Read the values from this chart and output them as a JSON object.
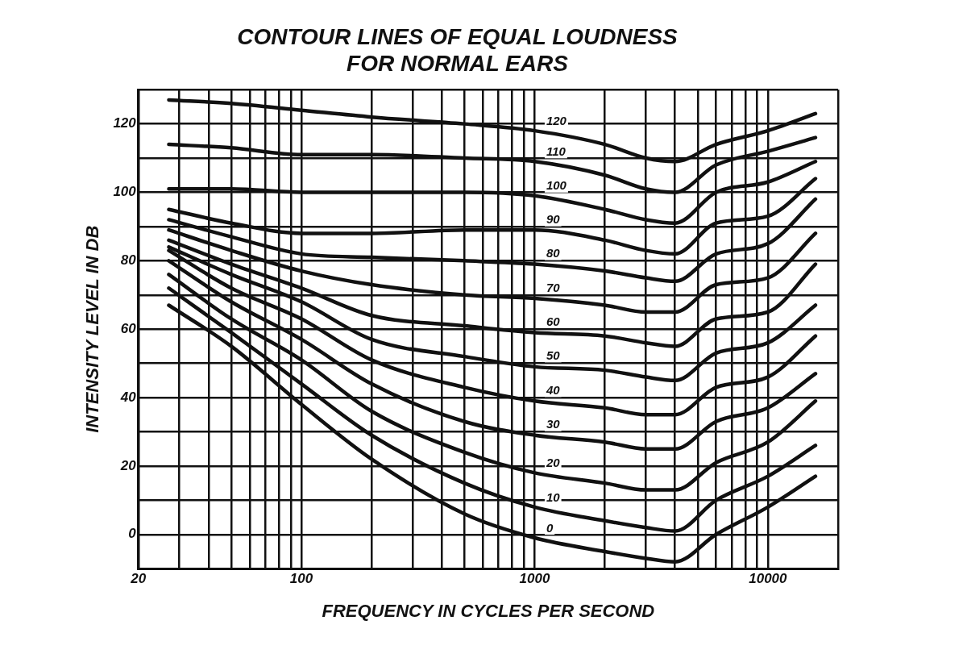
{
  "chart_data": {
    "type": "line",
    "title": "CONTOUR LINES OF EQUAL LOUDNESS\nFOR NORMAL EARS",
    "xlabel": "FREQUENCY IN CYCLES PER SECOND",
    "ylabel": "INTENSITY LEVEL IN DB",
    "log": "x",
    "grid": true,
    "legend": false,
    "marker": "none",
    "line_style": "solid",
    "xlim": [
      20,
      20000
    ],
    "ylim": [
      -10,
      130
    ],
    "xticks": [
      20,
      {
        "value": 30,
        "label": null
      },
      {
        "value": 40,
        "label": null
      },
      {
        "value": 50,
        "label": null
      },
      {
        "value": 60,
        "label": null
      },
      {
        "value": 70,
        "label": null
      },
      {
        "value": 80,
        "label": null
      },
      {
        "value": 90,
        "label": null
      },
      100,
      {
        "value": 200,
        "label": null
      },
      {
        "value": 300,
        "label": null
      },
      {
        "value": 400,
        "label": null
      },
      {
        "value": 500,
        "label": null
      },
      {
        "value": 600,
        "label": null
      },
      {
        "value": 700,
        "label": null
      },
      {
        "value": 800,
        "label": null
      },
      {
        "value": 900,
        "label": null
      },
      1000,
      {
        "value": 2000,
        "label": null
      },
      {
        "value": 3000,
        "label": null
      },
      {
        "value": 4000,
        "label": null
      },
      {
        "value": 5000,
        "label": null
      },
      {
        "value": 6000,
        "label": null
      },
      {
        "value": 7000,
        "label": null
      },
      {
        "value": 8000,
        "label": null
      },
      {
        "value": 9000,
        "label": null
      },
      10000,
      {
        "value": 20000,
        "label": null
      }
    ],
    "yticks": [
      {
        "value": -10,
        "label": null
      },
      0,
      {
        "value": 10,
        "label": null
      },
      20,
      {
        "value": 30,
        "label": null
      },
      40,
      {
        "value": 50,
        "label": null
      },
      60,
      {
        "value": 70,
        "label": null
      },
      80,
      {
        "value": 90,
        "label": null
      },
      100,
      {
        "value": 110,
        "label": null
      },
      120,
      {
        "value": 130,
        "label": null
      }
    ],
    "x": [
      27,
      50,
      100,
      200,
      500,
      1000,
      2000,
      3000,
      4000,
      6000,
      10000,
      16000
    ],
    "series": [
      {
        "name": "120",
        "color": "#111111",
        "values": [
          127,
          126,
          124,
          122,
          120,
          118,
          114,
          110,
          109,
          114,
          118,
          123
        ]
      },
      {
        "name": "110",
        "color": "#111111",
        "values": [
          114,
          113,
          111,
          111,
          110,
          109,
          105,
          101,
          100,
          108,
          112,
          116
        ]
      },
      {
        "name": "100",
        "color": "#111111",
        "values": [
          101,
          101,
          100,
          100,
          100,
          99,
          95,
          92,
          91,
          100,
          103,
          109
        ]
      },
      {
        "name": "90",
        "color": "#111111",
        "values": [
          95,
          91,
          88,
          88,
          89,
          89,
          86,
          83,
          82,
          91,
          93,
          104
        ]
      },
      {
        "name": "80",
        "color": "#111111",
        "values": [
          92,
          87,
          82,
          81,
          80,
          79,
          77,
          75,
          74,
          82,
          85,
          98
        ]
      },
      {
        "name": "70",
        "color": "#111111",
        "values": [
          89,
          83,
          77,
          73,
          70,
          69,
          67,
          65,
          65,
          73,
          75,
          88
        ]
      },
      {
        "name": "60",
        "color": "#111111",
        "values": [
          86,
          79,
          72,
          64,
          61,
          59,
          58,
          56,
          55,
          63,
          65,
          79
        ]
      },
      {
        "name": "50",
        "color": "#111111",
        "values": [
          84,
          76,
          68,
          57,
          52,
          49,
          48,
          46,
          45,
          53,
          56,
          67
        ]
      },
      {
        "name": "40",
        "color": "#111111",
        "values": [
          83,
          72,
          63,
          51,
          43,
          39,
          37,
          35,
          35,
          43,
          46,
          58
        ]
      },
      {
        "name": "30",
        "color": "#111111",
        "values": [
          80,
          68,
          57,
          44,
          33,
          29,
          27,
          25,
          25,
          33,
          37,
          47
        ]
      },
      {
        "name": "20",
        "color": "#111111",
        "values": [
          76,
          63,
          51,
          36,
          24,
          18,
          15,
          13,
          13,
          21,
          27,
          39
        ]
      },
      {
        "name": "10",
        "color": "#111111",
        "values": [
          72,
          59,
          44,
          29,
          15,
          8,
          4,
          2,
          1,
          10,
          17,
          26
        ]
      },
      {
        "name": "0",
        "color": "#111111",
        "values": [
          67,
          55,
          38,
          22,
          6,
          -1,
          -5,
          -7,
          -8,
          0,
          8,
          17
        ]
      }
    ]
  }
}
